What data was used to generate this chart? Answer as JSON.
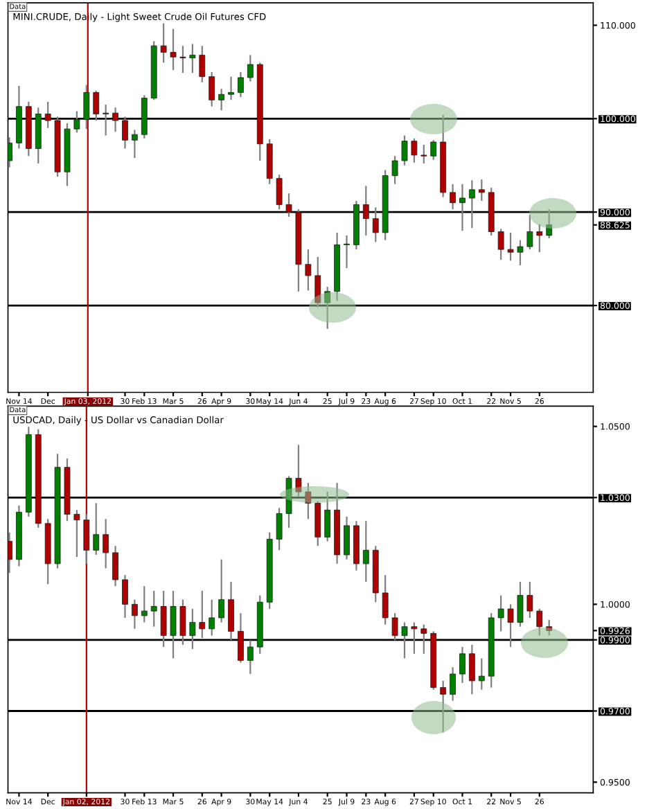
{
  "chart_data": [
    {
      "type": "candlestick",
      "title": "MINI.CRUDE, Daily - Light Sweet Crude Oil Futures CFD",
      "annotations": [
        "Data"
      ],
      "x": [
        "2011-11-07",
        "2011-11-14",
        "2011-11-21",
        "2011-11-28",
        "2011-12-05",
        "2011-12-12",
        "2011-12-19",
        "2011-12-26",
        "2012-01-02",
        "2012-01-09",
        "2012-01-16",
        "2012-01-23",
        "2012-01-30",
        "2012-02-06",
        "2012-02-13",
        "2012-02-20",
        "2012-02-27",
        "2012-03-05",
        "2012-03-12",
        "2012-03-19",
        "2012-03-26",
        "2012-04-02",
        "2012-04-09",
        "2012-04-16",
        "2012-04-23",
        "2012-04-30",
        "2012-05-07",
        "2012-05-14",
        "2012-05-21",
        "2012-05-28",
        "2012-06-04",
        "2012-06-11",
        "2012-06-18",
        "2012-06-25",
        "2012-07-02",
        "2012-07-09",
        "2012-07-16",
        "2012-07-23",
        "2012-07-30",
        "2012-08-06",
        "2012-08-13",
        "2012-08-20",
        "2012-08-27",
        "2012-09-03",
        "2012-09-10",
        "2012-09-17",
        "2012-09-24",
        "2012-10-01",
        "2012-10-08",
        "2012-10-15",
        "2012-10-22",
        "2012-10-29",
        "2012-11-05",
        "2012-11-12",
        "2012-11-19",
        "2012-11-26",
        "2012-12-03"
      ],
      "ohlc": [
        [
          95.5,
          98.0,
          94.8,
          97.4
        ],
        [
          97.4,
          103.5,
          96.8,
          101.3
        ],
        [
          101.3,
          101.8,
          96.0,
          96.8
        ],
        [
          96.8,
          101.2,
          95.2,
          100.5
        ],
        [
          100.5,
          101.8,
          99.0,
          99.8
        ],
        [
          99.8,
          100.2,
          93.8,
          94.3
        ],
        [
          94.3,
          99.5,
          92.8,
          98.9
        ],
        [
          98.9,
          100.8,
          98.5,
          99.9
        ],
        [
          99.9,
          103.6,
          98.9,
          102.8
        ],
        [
          102.8,
          103.0,
          99.8,
          100.5
        ],
        [
          100.5,
          101.5,
          98.2,
          100.6
        ],
        [
          100.6,
          101.2,
          98.6,
          99.8
        ],
        [
          99.8,
          100.2,
          96.8,
          97.7
        ],
        [
          97.7,
          98.8,
          95.8,
          98.3
        ],
        [
          98.3,
          102.5,
          97.9,
          102.2
        ],
        [
          102.2,
          108.3,
          102.0,
          107.8
        ],
        [
          107.8,
          110.2,
          106.0,
          107.1
        ],
        [
          107.1,
          109.6,
          105.2,
          106.6
        ],
        [
          106.6,
          107.8,
          104.9,
          106.5
        ],
        [
          106.5,
          108.0,
          104.9,
          106.8
        ],
        [
          106.8,
          107.8,
          103.9,
          104.5
        ],
        [
          104.5,
          105.0,
          101.3,
          102.0
        ],
        [
          102.0,
          103.2,
          100.9,
          102.6
        ],
        [
          102.6,
          104.5,
          102.0,
          102.8
        ],
        [
          102.8,
          105.0,
          102.3,
          104.4
        ],
        [
          104.4,
          106.8,
          104.0,
          105.8
        ],
        [
          105.8,
          106.0,
          95.5,
          97.3
        ],
        [
          97.3,
          97.8,
          93.0,
          93.6
        ],
        [
          93.6,
          94.0,
          90.3,
          90.8
        ],
        [
          90.8,
          92.0,
          89.5,
          90.0
        ],
        [
          90.0,
          90.3,
          81.5,
          84.4
        ],
        [
          84.4,
          86.0,
          81.6,
          83.2
        ],
        [
          83.2,
          85.2,
          79.8,
          80.3
        ],
        [
          80.3,
          82.0,
          77.5,
          81.5
        ],
        [
          81.5,
          87.8,
          80.5,
          86.5
        ],
        [
          86.5,
          87.5,
          84.0,
          86.5
        ],
        [
          86.5,
          91.2,
          86.0,
          90.8
        ],
        [
          90.8,
          92.8,
          87.5,
          89.3
        ],
        [
          89.3,
          90.5,
          86.8,
          87.8
        ],
        [
          87.8,
          94.5,
          87.0,
          93.9
        ],
        [
          93.9,
          96.0,
          93.0,
          95.5
        ],
        [
          95.5,
          98.2,
          95.0,
          97.6
        ],
        [
          97.6,
          97.9,
          95.3,
          96.1
        ],
        [
          96.1,
          97.2,
          95.2,
          96.0
        ],
        [
          96.0,
          97.7,
          95.6,
          97.5
        ],
        [
          97.5,
          100.4,
          91.6,
          92.1
        ],
        [
          92.1,
          93.0,
          90.3,
          91.0
        ],
        [
          91.0,
          93.0,
          88.0,
          91.5
        ],
        [
          91.5,
          93.4,
          88.3,
          92.4
        ],
        [
          92.4,
          93.5,
          91.2,
          92.1
        ],
        [
          92.1,
          92.6,
          87.5,
          87.9
        ],
        [
          87.9,
          88.2,
          84.9,
          86.0
        ],
        [
          86.0,
          87.8,
          84.8,
          85.7
        ],
        [
          85.7,
          87.0,
          84.3,
          86.3
        ],
        [
          86.3,
          89.7,
          86.0,
          87.9
        ],
        [
          87.9,
          88.7,
          85.7,
          87.5
        ],
        [
          87.5,
          90.3,
          87.2,
          88.625
        ]
      ],
      "colors": [
        "#008000",
        "#008000",
        "#b00000",
        "#008000",
        "#b00000",
        "#b00000",
        "#008000",
        "#008000",
        "#008000",
        "#b00000",
        "#008000",
        "#b00000",
        "#b00000",
        "#008000",
        "#008000",
        "#008000",
        "#b00000",
        "#b00000",
        "#b00000",
        "#008000",
        "#b00000",
        "#b00000",
        "#008000",
        "#008000",
        "#008000",
        "#008000",
        "#b00000",
        "#b00000",
        "#b00000",
        "#b00000",
        "#b00000",
        "#b00000",
        "#b00000",
        "#008000",
        "#008000",
        "#008000",
        "#008000",
        "#b00000",
        "#b00000",
        "#008000",
        "#008000",
        "#008000",
        "#b00000",
        "#b00000",
        "#008000",
        "#b00000",
        "#b00000",
        "#008000",
        "#008000",
        "#b00000",
        "#b00000",
        "#b00000",
        "#b00000",
        "#008000",
        "#008000",
        "#b00000",
        "#008000"
      ],
      "xlim": [
        "2011-11-06",
        "2013-01-04"
      ],
      "xticks": [
        {
          "value": "2011-11-14",
          "label": "Nov 14"
        },
        {
          "value": "2011-12-05",
          "label": "Dec"
        },
        {
          "value": "2012-01-03",
          "label": "Jan 03, 2012"
        },
        {
          "value": "2012-01-30",
          "label": "30"
        },
        {
          "value": "2012-02-13",
          "label": "Feb 13"
        },
        {
          "value": "2012-03-05",
          "label": "Mar 5"
        },
        {
          "value": "2012-03-26",
          "label": "26"
        },
        {
          "value": "2012-04-09",
          "label": "Apr 9"
        },
        {
          "value": "2012-04-30",
          "label": "30"
        },
        {
          "value": "2012-05-14",
          "label": "May 14"
        },
        {
          "value": "2012-06-04",
          "label": "Jun 4"
        },
        {
          "value": "2012-06-25",
          "label": "25"
        },
        {
          "value": "2012-07-09",
          "label": "Jul 9"
        },
        {
          "value": "2012-07-23",
          "label": "23"
        },
        {
          "value": "2012-08-06",
          "label": "Aug 6"
        },
        {
          "value": "2012-08-27",
          "label": "27"
        },
        {
          "value": "2012-09-10",
          "label": "Sep 10"
        },
        {
          "value": "2012-10-01",
          "label": "Oct 1"
        },
        {
          "value": "2012-10-22",
          "label": "22"
        },
        {
          "value": "2012-11-05",
          "label": "Nov 5"
        },
        {
          "value": "2012-11-26",
          "label": "26"
        }
      ],
      "ylim": [
        70.7,
        112.4
      ],
      "yticks": [
        {
          "value": 110,
          "label": "110.000"
        },
        {
          "value": 100,
          "label": "100.000"
        },
        {
          "value": 90,
          "label": "90.000"
        },
        {
          "value": 88.625,
          "label": "88.625"
        },
        {
          "value": 80,
          "label": "80.000"
        }
      ],
      "ref_lines": [
        {
          "axis": "y",
          "value": 100,
          "color": "#000000"
        },
        {
          "axis": "y",
          "value": 90,
          "color": "#000000"
        },
        {
          "axis": "y",
          "value": 80,
          "color": "#000000"
        },
        {
          "axis": "x",
          "value": "2012-01-03",
          "color": "#c00000"
        }
      ]
    },
    {
      "type": "candlestick",
      "title": "USDCAD, Daily - US Dollar vs Canadian Dollar",
      "annotations": [
        "Data"
      ],
      "x": [
        "2011-11-07",
        "2011-11-14",
        "2011-11-21",
        "2011-11-28",
        "2011-12-05",
        "2011-12-12",
        "2011-12-19",
        "2011-12-26",
        "2012-01-02",
        "2012-01-09",
        "2012-01-16",
        "2012-01-23",
        "2012-01-30",
        "2012-02-06",
        "2012-02-13",
        "2012-02-20",
        "2012-02-27",
        "2012-03-05",
        "2012-03-12",
        "2012-03-19",
        "2012-03-26",
        "2012-04-02",
        "2012-04-09",
        "2012-04-16",
        "2012-04-23",
        "2012-04-30",
        "2012-05-07",
        "2012-05-14",
        "2012-05-21",
        "2012-05-28",
        "2012-06-04",
        "2012-06-11",
        "2012-06-18",
        "2012-06-25",
        "2012-07-02",
        "2012-07-09",
        "2012-07-16",
        "2012-07-23",
        "2012-07-30",
        "2012-08-06",
        "2012-08-13",
        "2012-08-20",
        "2012-08-27",
        "2012-09-03",
        "2012-09-10",
        "2012-09-17",
        "2012-09-24",
        "2012-10-01",
        "2012-10-08",
        "2012-10-15",
        "2012-10-22",
        "2012-10-29",
        "2012-11-05",
        "2012-11-12",
        "2012-11-19",
        "2012-11-26",
        "2012-12-03"
      ],
      "ohlc": [
        [
          1.0177,
          1.0202,
          1.0088,
          1.0126
        ],
        [
          1.0126,
          1.0278,
          1.0107,
          1.0259
        ],
        [
          1.0259,
          1.0499,
          1.0246,
          1.0477
        ],
        [
          1.0477,
          1.0492,
          1.0215,
          1.0227
        ],
        [
          1.0227,
          1.024,
          1.0057,
          1.0114
        ],
        [
          1.0114,
          1.0423,
          1.0101,
          1.0385
        ],
        [
          1.0385,
          1.041,
          1.0234,
          1.0253
        ],
        [
          1.0253,
          1.0265,
          1.0133,
          1.0237
        ],
        [
          1.0237,
          1.0253,
          1.0114,
          1.0152
        ],
        [
          1.0152,
          1.0284,
          1.0139,
          1.0196
        ],
        [
          1.0196,
          1.024,
          1.0101,
          1.0145
        ],
        [
          1.0145,
          1.0164,
          1.0051,
          1.0069
        ],
        [
          1.0069,
          1.0082,
          0.9962,
          1.0
        ],
        [
          1.0,
          1.0013,
          0.9931,
          0.9968
        ],
        [
          0.9968,
          1.0051,
          0.9949,
          0.9981
        ],
        [
          0.9981,
          1.0038,
          0.9937,
          0.9994
        ],
        [
          0.9994,
          1.0038,
          0.988,
          0.9912
        ],
        [
          0.9912,
          1.0038,
          0.9848,
          0.9994
        ],
        [
          0.9994,
          1.0013,
          0.9886,
          0.9912
        ],
        [
          0.9912,
          0.9987,
          0.9874,
          0.9949
        ],
        [
          0.9949,
          1.0038,
          0.9905,
          0.9931
        ],
        [
          0.9931,
          1.0013,
          0.9912,
          0.9962
        ],
        [
          0.9962,
          1.0126,
          0.9949,
          1.0013
        ],
        [
          1.0013,
          1.0063,
          0.9899,
          0.9924
        ],
        [
          0.9924,
          0.9975,
          0.9836,
          0.9842
        ],
        [
          0.9842,
          0.9899,
          0.9804,
          0.988
        ],
        [
          0.988,
          1.0025,
          0.9861,
          1.0006
        ],
        [
          1.0006,
          1.0202,
          0.9987,
          1.0183
        ],
        [
          1.0183,
          1.0271,
          1.0152,
          1.0255
        ],
        [
          1.0255,
          1.036,
          1.0215,
          1.0354
        ],
        [
          1.0354,
          1.0448,
          1.0303,
          1.0316
        ],
        [
          1.0316,
          1.0341,
          1.024,
          1.0284
        ],
        [
          1.0284,
          1.029,
          1.0164,
          1.0189
        ],
        [
          1.0189,
          1.0316,
          1.0177,
          1.0265
        ],
        [
          1.0265,
          1.0341,
          1.0114,
          1.0139
        ],
        [
          1.0139,
          1.0246,
          1.0126,
          1.0221
        ],
        [
          1.0221,
          1.0234,
          1.0095,
          1.0114
        ],
        [
          1.0114,
          1.0234,
          1.0063,
          1.0152
        ],
        [
          1.0152,
          1.0164,
          1.0006,
          1.0032
        ],
        [
          1.0032,
          1.0082,
          0.9943,
          0.9962
        ],
        [
          0.9962,
          0.9975,
          0.9899,
          0.9912
        ],
        [
          0.9912,
          0.9949,
          0.9848,
          0.9937
        ],
        [
          0.9937,
          0.9949,
          0.9861,
          0.9931
        ],
        [
          0.9931,
          0.9943,
          0.9861,
          0.9918
        ],
        [
          0.9918,
          0.9924,
          0.976,
          0.9766
        ],
        [
          0.9766,
          0.9785,
          0.964,
          0.9747
        ],
        [
          0.9747,
          0.9823,
          0.9729,
          0.9804
        ],
        [
          0.9804,
          0.988,
          0.9779,
          0.9861
        ],
        [
          0.9861,
          0.9886,
          0.9747,
          0.9785
        ],
        [
          0.9785,
          0.9848,
          0.976,
          0.9798
        ],
        [
          0.9798,
          0.9975,
          0.9766,
          0.9962
        ],
        [
          0.9962,
          1.0025,
          0.9924,
          0.9987
        ],
        [
          0.9987,
          1.0,
          0.988,
          0.9949
        ],
        [
          0.9949,
          1.0063,
          0.9937,
          1.0025
        ],
        [
          1.0025,
          1.0063,
          0.9962,
          0.9981
        ],
        [
          0.9981,
          0.9987,
          0.9912,
          0.9937
        ],
        [
          0.9937,
          0.9956,
          0.9912,
          0.9926
        ]
      ],
      "colors": [
        "#b00000",
        "#008000",
        "#008000",
        "#b00000",
        "#b00000",
        "#008000",
        "#b00000",
        "#b00000",
        "#b00000",
        "#008000",
        "#b00000",
        "#b00000",
        "#b00000",
        "#b00000",
        "#008000",
        "#008000",
        "#b00000",
        "#008000",
        "#b00000",
        "#008000",
        "#b00000",
        "#008000",
        "#008000",
        "#b00000",
        "#b00000",
        "#008000",
        "#008000",
        "#008000",
        "#008000",
        "#008000",
        "#b00000",
        "#b00000",
        "#b00000",
        "#008000",
        "#b00000",
        "#008000",
        "#b00000",
        "#008000",
        "#b00000",
        "#b00000",
        "#b00000",
        "#008000",
        "#b00000",
        "#b00000",
        "#b00000",
        "#b00000",
        "#008000",
        "#008000",
        "#b00000",
        "#008000",
        "#008000",
        "#008000",
        "#b00000",
        "#008000",
        "#b00000",
        "#b00000",
        "#b00000"
      ],
      "xlim": [
        "2011-11-06",
        "2013-01-04"
      ],
      "xticks": [
        {
          "value": "2011-11-14",
          "label": "Nov 14"
        },
        {
          "value": "2011-12-05",
          "label": "Dec"
        },
        {
          "value": "2012-01-02",
          "label": "Jan 02, 2012"
        },
        {
          "value": "2012-01-30",
          "label": "30"
        },
        {
          "value": "2012-02-13",
          "label": "Feb 13"
        },
        {
          "value": "2012-03-05",
          "label": "Mar 5"
        },
        {
          "value": "2012-03-26",
          "label": "26"
        },
        {
          "value": "2012-04-09",
          "label": "Apr 9"
        },
        {
          "value": "2012-04-30",
          "label": "30"
        },
        {
          "value": "2012-05-14",
          "label": "May 14"
        },
        {
          "value": "2012-06-04",
          "label": "Jun 4"
        },
        {
          "value": "2012-06-25",
          "label": "25"
        },
        {
          "value": "2012-07-09",
          "label": "Jul 9"
        },
        {
          "value": "2012-07-23",
          "label": "23"
        },
        {
          "value": "2012-08-06",
          "label": "Aug 6"
        },
        {
          "value": "2012-08-27",
          "label": "27"
        },
        {
          "value": "2012-09-10",
          "label": "Sep 10"
        },
        {
          "value": "2012-10-01",
          "label": "Oct 1"
        },
        {
          "value": "2012-10-22",
          "label": "22"
        },
        {
          "value": "2012-11-05",
          "label": "Nov 5"
        },
        {
          "value": "2012-11-26",
          "label": "26"
        }
      ],
      "ylim": [
        0.947,
        1.0557
      ],
      "yticks": [
        {
          "value": 1.05,
          "label": "1.0500"
        },
        {
          "value": 1.03,
          "label": "1.0300"
        },
        {
          "value": 1.0,
          "label": "1.0000"
        },
        {
          "value": 0.9926,
          "label": "0.9926"
        },
        {
          "value": 0.99,
          "label": "0.9900"
        },
        {
          "value": 0.97,
          "label": "0.9700"
        },
        {
          "value": 0.95,
          "label": "0.9500"
        }
      ],
      "ref_lines": [
        {
          "axis": "y",
          "value": 1.03,
          "color": "#000000"
        },
        {
          "axis": "y",
          "value": 0.99,
          "color": "#000000"
        },
        {
          "axis": "y",
          "value": 0.97,
          "color": "#000000"
        },
        {
          "axis": "x",
          "value": "2012-01-02",
          "color": "#c00000"
        }
      ]
    }
  ]
}
